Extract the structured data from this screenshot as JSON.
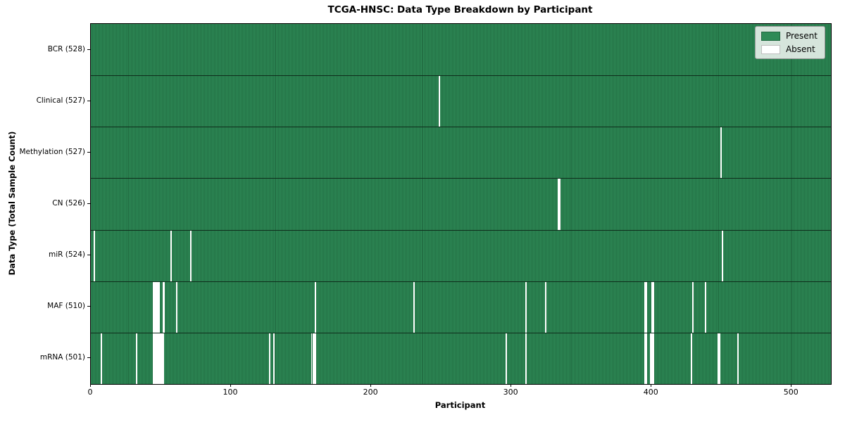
{
  "chart_data": {
    "type": "heatmap",
    "title": "TCGA-HNSC: Data Type Breakdown by Participant",
    "xlabel": "Participant",
    "ylabel": "Data Type (Total Sample Count)",
    "xlim": [
      0,
      528
    ],
    "x_ticks": [
      0,
      100,
      200,
      300,
      400,
      500
    ],
    "n_participants": 528,
    "legend": [
      {
        "label": "Present",
        "color": "#2e8b57"
      },
      {
        "label": "Absent",
        "color": "#ffffff"
      }
    ],
    "colors": {
      "present": "#2e8b57",
      "absent": "#ffffff",
      "cell_edge": "#0e2c1b",
      "legend_bg": "#e4e9e4"
    },
    "rows": [
      {
        "label": "BCR (528)",
        "data_type": "BCR",
        "count": 528,
        "absent": []
      },
      {
        "label": "Clinical (527)",
        "data_type": "Clinical",
        "count": 527,
        "absent": [
          248
        ]
      },
      {
        "label": "Methylation (527)",
        "data_type": "Methylation",
        "count": 527,
        "absent": [
          449
        ]
      },
      {
        "label": "CN (526)",
        "data_type": "CN",
        "count": 526,
        "absent": [
          333,
          334
        ]
      },
      {
        "label": "miR (524)",
        "data_type": "miR",
        "count": 524,
        "absent": [
          2,
          57,
          71,
          450
        ]
      },
      {
        "label": "MAF (510)",
        "data_type": "MAF",
        "count": 510,
        "absent": [
          44,
          45,
          46,
          47,
          48,
          51,
          52,
          61,
          160,
          230,
          310,
          324,
          395,
          396,
          400,
          401,
          429,
          438
        ]
      },
      {
        "label": "mRNA (501)",
        "data_type": "mRNA",
        "count": 501,
        "absent": [
          7,
          32,
          44,
          45,
          46,
          47,
          48,
          49,
          50,
          51,
          127,
          130,
          157,
          158,
          159,
          160,
          296,
          310,
          395,
          396,
          399,
          400,
          401,
          428,
          447,
          448,
          461
        ]
      }
    ]
  }
}
